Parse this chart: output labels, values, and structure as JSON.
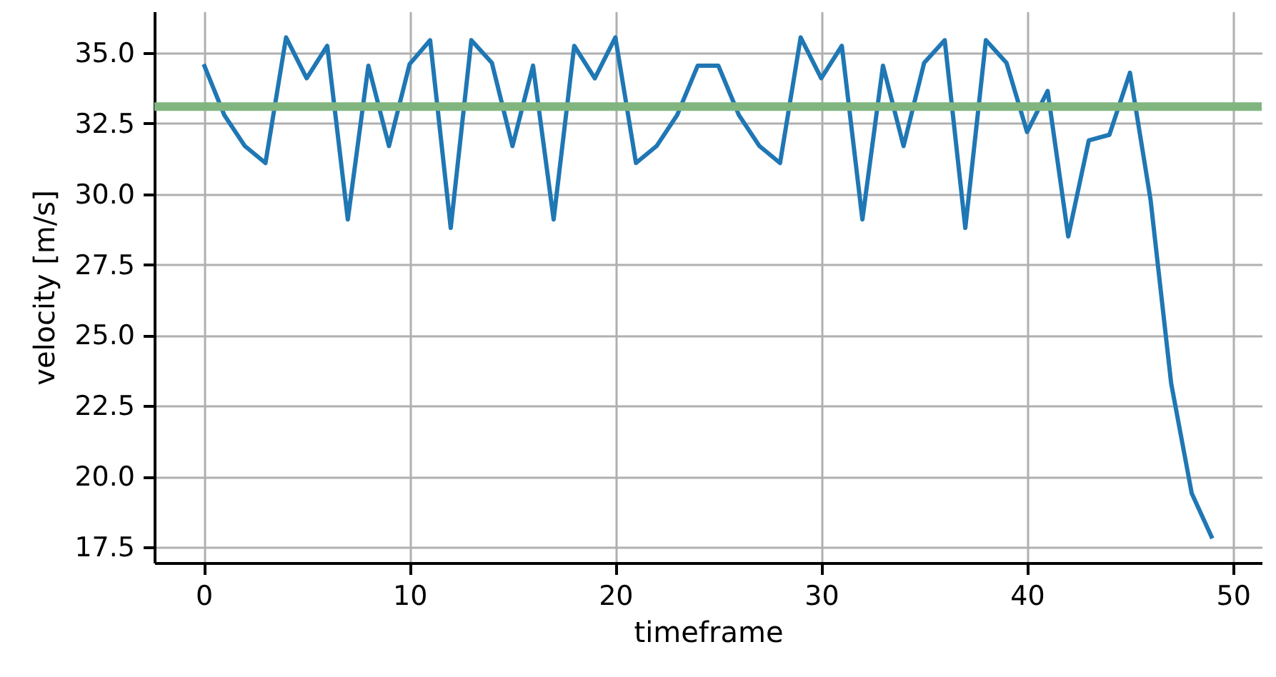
{
  "chart_data": {
    "type": "line",
    "xlabel": "timeframe",
    "ylabel": "velocity [m/s]",
    "x": [
      0,
      1,
      2,
      3,
      4,
      5,
      6,
      7,
      8,
      9,
      10,
      11,
      12,
      13,
      14,
      15,
      16,
      17,
      18,
      19,
      20,
      21,
      22,
      23,
      24,
      25,
      26,
      27,
      28,
      29,
      30,
      31,
      32,
      33,
      34,
      35,
      36,
      37,
      38,
      39,
      40,
      41,
      42,
      43,
      44,
      45,
      46,
      47,
      48,
      49
    ],
    "series": [
      {
        "color": "#1f77b4",
        "values": [
          34.6,
          32.8,
          31.7,
          31.1,
          35.55,
          34.1,
          35.25,
          29.1,
          34.55,
          31.7,
          34.6,
          35.45,
          28.8,
          35.45,
          34.65,
          31.7,
          34.55,
          29.1,
          35.25,
          34.1,
          35.55,
          31.1,
          31.7,
          32.8,
          34.55,
          34.55,
          32.8,
          31.7,
          31.1,
          35.55,
          34.1,
          35.25,
          29.1,
          34.55,
          31.7,
          34.65,
          35.45,
          28.8,
          35.45,
          34.65,
          32.2,
          33.65,
          28.5,
          31.9,
          32.1,
          34.3,
          29.8,
          23.3,
          19.4,
          17.8
        ]
      }
    ],
    "xlim": [
      -2.4,
      51.4
    ],
    "xticks": [
      0,
      10,
      20,
      30,
      40,
      50
    ],
    "ylim": [
      16.94,
      36.47
    ],
    "yticks": [
      17.5,
      {
        "value": 20,
        "label": "20.0"
      },
      22.5,
      {
        "value": 25,
        "label": "25.0"
      },
      27.5,
      {
        "value": 30,
        "label": "30.0"
      },
      32.5,
      {
        "value": 35,
        "label": "35.0"
      }
    ],
    "ref_lines": [
      {
        "axis": "y",
        "value": 33.1,
        "color": "#80b57f"
      }
    ],
    "grid": true
  }
}
